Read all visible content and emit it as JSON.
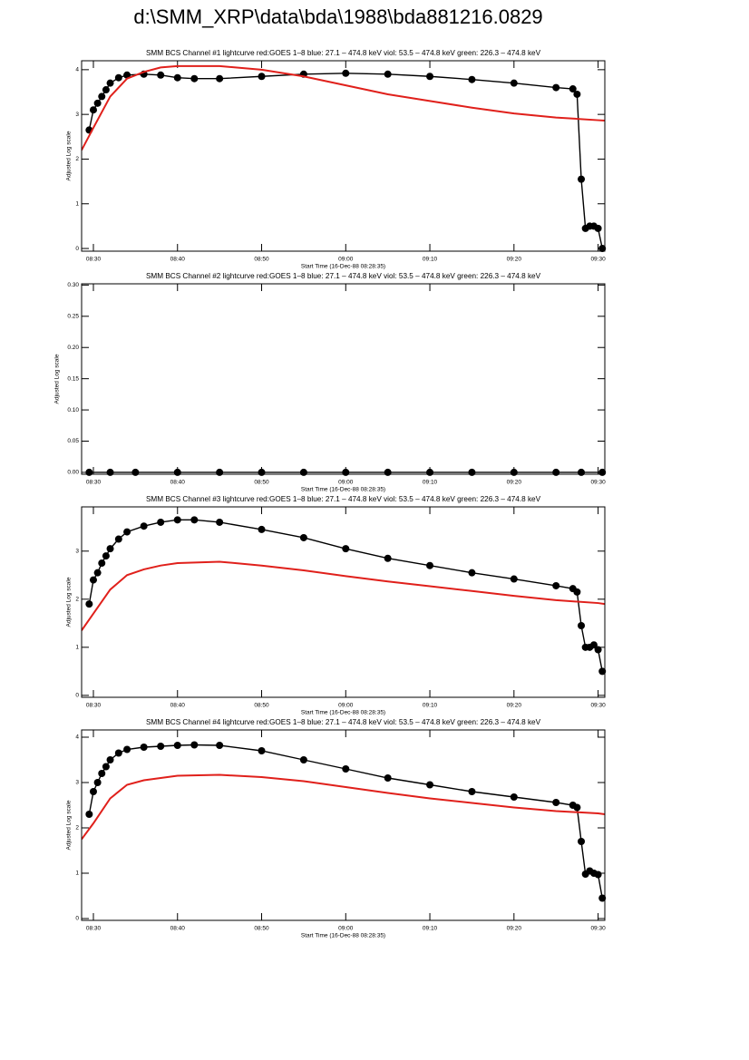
{
  "title": "d:\\SMM_XRP\\data\\bda\\1988\\bda881216.0829",
  "chart_data": [
    {
      "type": "line",
      "title": "SMM BCS Channel #1 lightcurve  red:GOES 1–8  blue: 27.1 – 474.8 keV  viol: 53.5 – 474.8 keV  green: 226.3 – 474.8 keV",
      "xlabel": "Start Time (16-Dec-88 08:28:35)",
      "ylabel": "Adjusted Log scale",
      "xlim": [
        508.6,
        570.8
      ],
      "ylim": [
        -0.06,
        4.2
      ],
      "xticks": [
        {
          "value": 510,
          "label": "08:30"
        },
        {
          "value": 520,
          "label": "08:40"
        },
        {
          "value": 530,
          "label": "08:50"
        },
        {
          "value": 540,
          "label": "09:00"
        },
        {
          "value": 550,
          "label": "09:10"
        },
        {
          "value": 560,
          "label": "09:20"
        },
        {
          "value": 570,
          "label": "09:30"
        }
      ],
      "yticks": [
        0,
        1,
        2,
        3,
        4
      ],
      "series": [
        {
          "color": "#000000",
          "markers": true,
          "x": [
            509.5,
            510,
            510.5,
            511,
            511.5,
            512,
            513,
            514,
            516,
            518,
            520,
            522,
            525,
            530,
            535,
            540,
            545,
            550,
            555,
            560,
            565,
            567,
            567.5,
            568,
            568.5,
            569,
            569.5,
            570,
            570.5
          ],
          "values": [
            2.65,
            3.1,
            3.25,
            3.4,
            3.55,
            3.7,
            3.82,
            3.88,
            3.9,
            3.88,
            3.82,
            3.8,
            3.8,
            3.85,
            3.9,
            3.92,
            3.9,
            3.85,
            3.78,
            3.7,
            3.6,
            3.57,
            3.45,
            1.55,
            0.45,
            0.5,
            0.5,
            0.45,
            0
          ]
        },
        {
          "color": "#e0201b",
          "markers": false,
          "x": [
            508.6,
            510,
            512,
            514,
            516,
            518,
            520,
            525,
            530,
            535,
            540,
            545,
            550,
            555,
            560,
            565,
            570,
            570.8
          ],
          "values": [
            2.2,
            2.7,
            3.4,
            3.8,
            3.95,
            4.05,
            4.08,
            4.08,
            4.0,
            3.85,
            3.65,
            3.45,
            3.3,
            3.15,
            3.02,
            2.93,
            2.87,
            2.86
          ]
        }
      ]
    },
    {
      "type": "line",
      "title": "SMM BCS Channel #2 lightcurve  red:GOES 1–8  blue: 27.1 – 474.8 keV  viol: 53.5 – 474.8 keV  green: 226.3 – 474.8 keV",
      "xlabel": "Start Time (16-Dec-88 08:28:35)",
      "ylabel": "Adjusted Log scale",
      "xlim": [
        508.6,
        570.8
      ],
      "ylim": [
        -0.003,
        0.302
      ],
      "xticks": [
        {
          "value": 510,
          "label": "08:30"
        },
        {
          "value": 520,
          "label": "08:40"
        },
        {
          "value": 530,
          "label": "08:50"
        },
        {
          "value": 540,
          "label": "09:00"
        },
        {
          "value": 550,
          "label": "09:10"
        },
        {
          "value": 560,
          "label": "09:20"
        },
        {
          "value": 570,
          "label": "09:30"
        }
      ],
      "yticks": [
        {
          "value": 0,
          "label": "0.00"
        },
        {
          "value": 0.05,
          "label": "0.05"
        },
        {
          "value": 0.1,
          "label": "0.10"
        },
        {
          "value": 0.15,
          "label": "0.15"
        },
        {
          "value": 0.2,
          "label": "0.20"
        },
        {
          "value": 0.25,
          "label": "0.25"
        },
        {
          "value": 0.3,
          "label": "0.30"
        }
      ],
      "series": [
        {
          "color": "#000000",
          "markers": true,
          "x": [
            509.5,
            512,
            515,
            520,
            525,
            530,
            535,
            540,
            545,
            550,
            555,
            560,
            565,
            568,
            570.5
          ],
          "values": [
            0,
            0,
            0,
            0,
            0,
            0,
            0,
            0,
            0,
            0,
            0,
            0,
            0,
            0,
            0
          ]
        }
      ]
    },
    {
      "type": "line",
      "title": "SMM BCS Channel #3 lightcurve  red:GOES 1–8  blue: 27.1 – 474.8 keV  viol: 53.5 – 474.8 keV  green: 226.3 – 474.8 keV",
      "xlabel": "Start Time (16-Dec-88 08:28:35)",
      "ylabel": "Adjusted Log scale",
      "xlim": [
        508.6,
        570.8
      ],
      "ylim": [
        -0.04,
        3.92
      ],
      "xticks": [
        {
          "value": 510,
          "label": "08:30"
        },
        {
          "value": 520,
          "label": "08:40"
        },
        {
          "value": 530,
          "label": "08:50"
        },
        {
          "value": 540,
          "label": "09:00"
        },
        {
          "value": 550,
          "label": "09:10"
        },
        {
          "value": 560,
          "label": "09:20"
        },
        {
          "value": 570,
          "label": "09:30"
        }
      ],
      "yticks": [
        0,
        1,
        2,
        3
      ],
      "series": [
        {
          "color": "#000000",
          "markers": true,
          "x": [
            509.5,
            510,
            510.5,
            511,
            511.5,
            512,
            513,
            514,
            516,
            518,
            520,
            522,
            525,
            530,
            535,
            540,
            545,
            550,
            555,
            560,
            565,
            567,
            567.5,
            568,
            568.5,
            569,
            569.5,
            570,
            570.5
          ],
          "values": [
            1.9,
            2.4,
            2.55,
            2.75,
            2.9,
            3.05,
            3.25,
            3.4,
            3.52,
            3.6,
            3.65,
            3.65,
            3.6,
            3.45,
            3.28,
            3.05,
            2.85,
            2.7,
            2.55,
            2.42,
            2.28,
            2.22,
            2.15,
            1.45,
            1.0,
            1.0,
            1.05,
            0.95,
            0.5
          ]
        },
        {
          "color": "#e0201b",
          "markers": false,
          "x": [
            508.6,
            510,
            512,
            514,
            516,
            518,
            520,
            525,
            530,
            535,
            540,
            545,
            550,
            555,
            560,
            565,
            570,
            570.8
          ],
          "values": [
            1.35,
            1.7,
            2.2,
            2.5,
            2.62,
            2.7,
            2.75,
            2.78,
            2.7,
            2.6,
            2.48,
            2.37,
            2.27,
            2.17,
            2.07,
            1.98,
            1.92,
            1.9
          ]
        }
      ]
    },
    {
      "type": "line",
      "title": "SMM BCS Channel #4 lightcurve  red:GOES 1–8  blue: 27.1 – 474.8 keV  viol: 53.5 – 474.8 keV  green: 226.3 – 474.8 keV",
      "xlabel": "Start Time (16-Dec-88 08:28:35)",
      "ylabel": "Adjusted Log scale",
      "xlim": [
        508.6,
        570.8
      ],
      "ylim": [
        -0.04,
        4.16
      ],
      "xticks": [
        {
          "value": 510,
          "label": "08:30"
        },
        {
          "value": 520,
          "label": "08:40"
        },
        {
          "value": 530,
          "label": "08:50"
        },
        {
          "value": 540,
          "label": "09:00"
        },
        {
          "value": 550,
          "label": "09:10"
        },
        {
          "value": 560,
          "label": "09:20"
        },
        {
          "value": 570,
          "label": "09:30"
        }
      ],
      "yticks": [
        0,
        1,
        2,
        3,
        4
      ],
      "series": [
        {
          "color": "#000000",
          "markers": true,
          "x": [
            509.5,
            510,
            510.5,
            511,
            511.5,
            512,
            513,
            514,
            516,
            518,
            520,
            522,
            525,
            530,
            535,
            540,
            545,
            550,
            555,
            560,
            565,
            567,
            567.5,
            568,
            568.5,
            569,
            569.5,
            570,
            570.5
          ],
          "values": [
            2.3,
            2.8,
            3.0,
            3.2,
            3.35,
            3.5,
            3.65,
            3.73,
            3.78,
            3.8,
            3.82,
            3.83,
            3.82,
            3.7,
            3.5,
            3.3,
            3.1,
            2.95,
            2.8,
            2.68,
            2.56,
            2.5,
            2.45,
            1.7,
            0.98,
            1.05,
            1.0,
            0.97,
            0.45
          ]
        },
        {
          "color": "#e0201b",
          "markers": false,
          "x": [
            508.6,
            510,
            512,
            514,
            516,
            518,
            520,
            525,
            530,
            535,
            540,
            545,
            550,
            555,
            560,
            565,
            570,
            570.8
          ],
          "values": [
            1.75,
            2.1,
            2.65,
            2.95,
            3.05,
            3.1,
            3.15,
            3.17,
            3.12,
            3.03,
            2.9,
            2.77,
            2.65,
            2.55,
            2.45,
            2.37,
            2.32,
            2.3
          ]
        }
      ]
    }
  ]
}
